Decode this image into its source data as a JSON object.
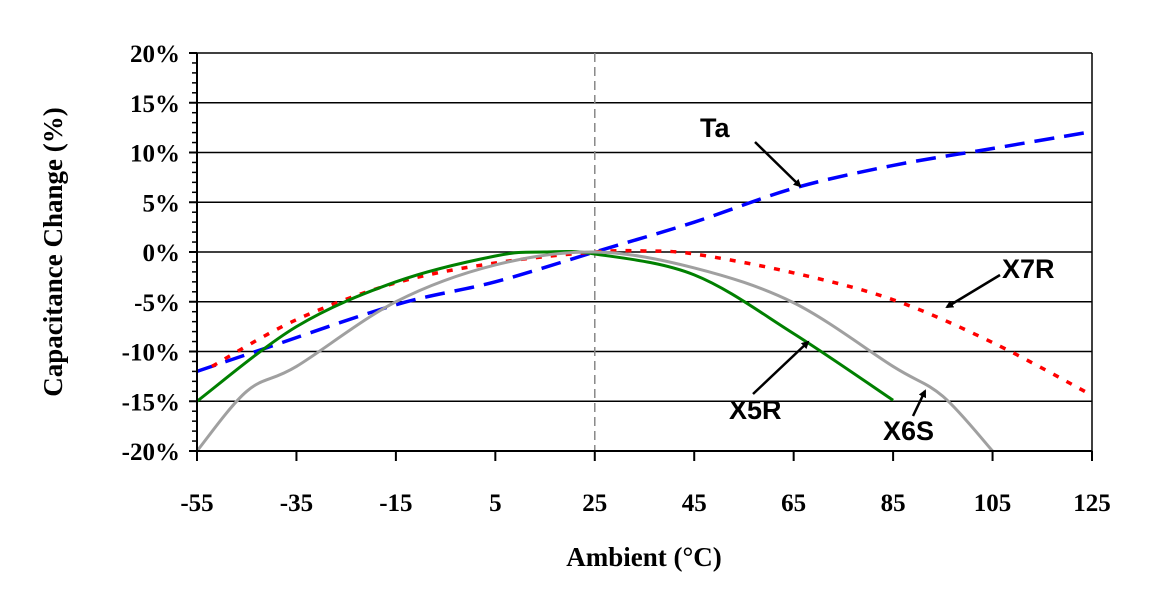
{
  "chart_data": {
    "type": "line",
    "title": "",
    "xlabel": "Ambient (°C)",
    "ylabel": "Capacitance Change (%)",
    "xlim": [
      -55,
      125
    ],
    "ylim": [
      -20,
      20
    ],
    "x_ticks": [
      "-55",
      "-35",
      "-15",
      "5",
      "25",
      "45",
      "65",
      "85",
      "105",
      "125"
    ],
    "y_ticks": [
      "20%",
      "15%",
      "10%",
      "5%",
      "0%",
      "-5%",
      "-10%",
      "-15%",
      "-20%"
    ],
    "grid": "horizontal major gridlines",
    "reference_line_x": 25,
    "series": [
      {
        "name": "Ta",
        "color": "#0000ff",
        "style": "dashed",
        "x": [
          -55,
          -42,
          -15,
          5,
          25,
          45,
          65,
          85,
          105,
          125
        ],
        "y": [
          -12,
          -9.8,
          -5.3,
          -3,
          0,
          3,
          6.4,
          8.7,
          10.4,
          12.1
        ]
      },
      {
        "name": "X7R",
        "color": "#ff0000",
        "style": "dotted",
        "x": [
          -52,
          -35,
          -15,
          5,
          25,
          35,
          45,
          65,
          85,
          105,
          125
        ],
        "y": [
          -11.5,
          -6.8,
          -3.1,
          -1.1,
          0,
          0.1,
          -0.2,
          -2.1,
          -4.8,
          -9.1,
          -14.4
        ]
      },
      {
        "name": "X5R",
        "color": "#008000",
        "style": "solid",
        "x": [
          -55,
          -35,
          -15,
          5,
          15,
          25,
          45,
          65,
          85
        ],
        "y": [
          -15,
          -7.5,
          -3,
          -0.4,
          0,
          -0.2,
          -2.3,
          -8.2,
          -14.9
        ]
      },
      {
        "name": "X6S",
        "color": "#a0a0a0",
        "style": "solid",
        "x": [
          -55,
          -45,
          -35,
          -15,
          5,
          25,
          45,
          65,
          85,
          95,
          105
        ],
        "y": [
          -20,
          -14,
          -11.5,
          -5,
          -1.3,
          0,
          -1.6,
          -5.1,
          -11.5,
          -14.5,
          -20
        ]
      }
    ],
    "annotations": [
      {
        "text": "Ta",
        "series": "Ta"
      },
      {
        "text": "X7R",
        "series": "X7R"
      },
      {
        "text": "X5R",
        "series": "X5R"
      },
      {
        "text": "X6S",
        "series": "X6S"
      }
    ]
  }
}
